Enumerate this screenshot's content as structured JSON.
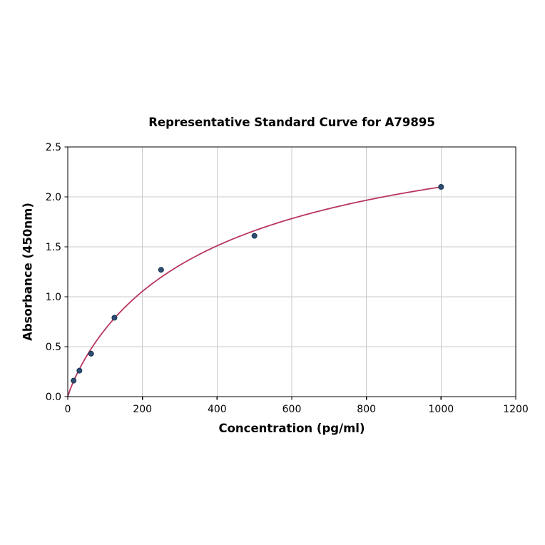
{
  "chart_data": {
    "type": "scatter",
    "title": "Representative Standard Curve for A79895",
    "xlabel": "Concentration (pg/ml)",
    "ylabel": "Absorbance (450nm)",
    "xlim": [
      0,
      1200
    ],
    "ylim": [
      0,
      2.5
    ],
    "grid": true,
    "legend": "none",
    "xticks": [
      {
        "value": 0,
        "label": "0"
      },
      {
        "value": 200,
        "label": "200"
      },
      {
        "value": 400,
        "label": "400"
      },
      {
        "value": 600,
        "label": "600"
      },
      {
        "value": 800,
        "label": "800"
      },
      {
        "value": 1000,
        "label": "1000"
      },
      {
        "value": 1200,
        "label": "1200"
      }
    ],
    "yticks": [
      {
        "value": 0.0,
        "label": "0.0"
      },
      {
        "value": 0.5,
        "label": "0.5"
      },
      {
        "value": 1.0,
        "label": "1.0"
      },
      {
        "value": 1.5,
        "label": "1.5"
      },
      {
        "value": 2.0,
        "label": "2.0"
      },
      {
        "value": 2.5,
        "label": "2.5"
      }
    ],
    "series": [
      {
        "name": "standard-points",
        "type": "scatter",
        "points": [
          {
            "x": 15.6,
            "y": 0.16
          },
          {
            "x": 31.2,
            "y": 0.26
          },
          {
            "x": 62.5,
            "y": 0.43
          },
          {
            "x": 125,
            "y": 0.79
          },
          {
            "x": 250,
            "y": 1.27
          },
          {
            "x": 500,
            "y": 1.61
          },
          {
            "x": 1000,
            "y": 2.1
          }
        ]
      },
      {
        "name": "fit-curve",
        "type": "line",
        "model": "4PL",
        "params": {
          "a": 0.0,
          "b": 0.9,
          "c": 400.0,
          "d": 3.02
        },
        "x_start": 0,
        "x_end": 1000
      }
    ],
    "colors": {
      "marker_fill": "#2d4d73",
      "marker_edge": "#16324f",
      "curve": "#b8355c",
      "grid": "#cbcbcb",
      "axis": "#000000",
      "text": "#000000",
      "background": "#ffffff"
    }
  }
}
